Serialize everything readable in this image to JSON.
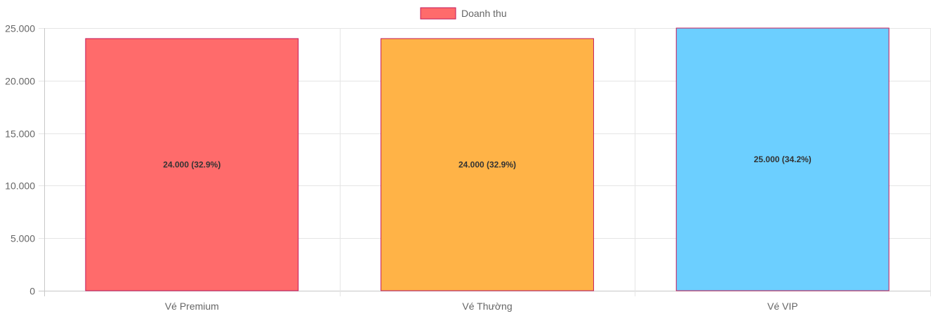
{
  "chart_data": {
    "type": "bar",
    "categories": [
      "Vé Premium",
      "Vé Thường",
      "Vé VIP"
    ],
    "series": [
      {
        "name": "Doanh thu",
        "values": [
          24000,
          24000,
          25000
        ],
        "labels": [
          "24.000 (32.9%)",
          "24.000 (32.9%)",
          "25.000 (34.2%)"
        ],
        "colors": [
          "#ff6b6b",
          "#ffb347",
          "#6ccfff"
        ],
        "border_color": "#c2185b"
      }
    ],
    "y_ticks": [
      "0",
      "5.000",
      "10.000",
      "15.000",
      "20.000",
      "25.000"
    ],
    "ylim": [
      0,
      25000
    ],
    "grid": true,
    "legend_position": "top-center",
    "legend_color": "#ff6b6b"
  }
}
